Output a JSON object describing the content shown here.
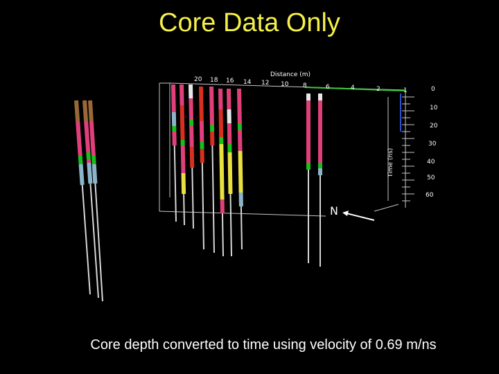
{
  "slide": {
    "title": "Core Data Only",
    "caption": "Core depth converted to time using velocity of 0.69 m/ns"
  },
  "plot": {
    "x_axis_label": "Distance (m)",
    "y_axis_label": "Time (ns)",
    "x_ticks": [
      "20",
      "18",
      "16",
      "14",
      "12",
      "10",
      "8",
      "6",
      "4",
      "2",
      "1"
    ],
    "y_ticks": [
      "0",
      "10",
      "20",
      "30",
      "40",
      "50",
      "60"
    ],
    "north_label": "N"
  },
  "colors": {
    "title": "#f4f04a",
    "pink": "#e0407a",
    "green": "#18c018",
    "blue_grey": "#8cb4c8",
    "yellow": "#e8e040",
    "brown": "#9a6838",
    "red": "#d83020",
    "axis_green": "#3cc83c"
  }
}
